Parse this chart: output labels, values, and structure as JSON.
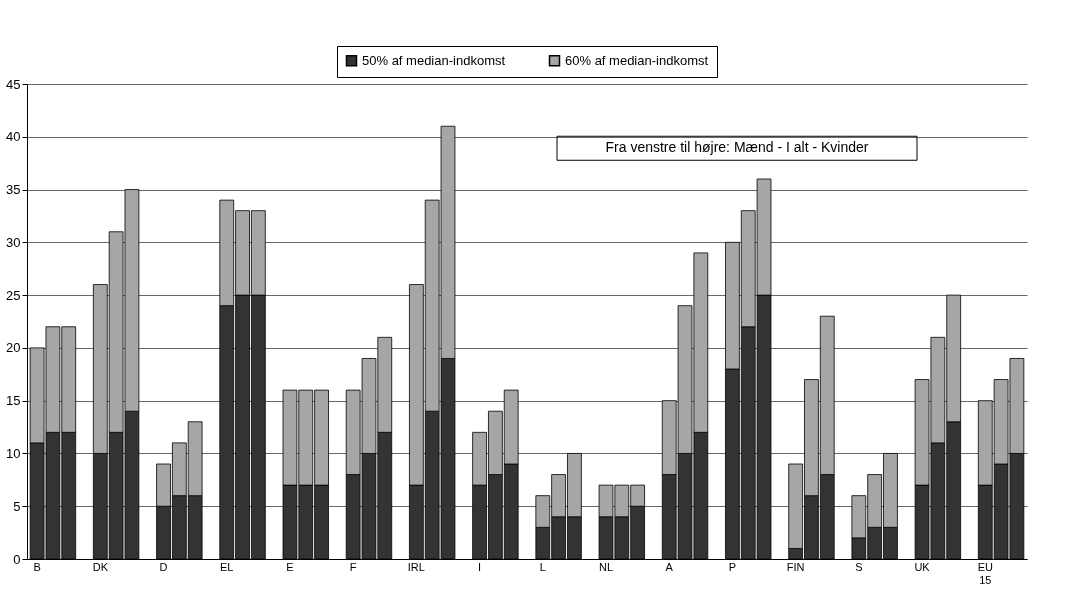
{
  "chart_data": {
    "type": "bar",
    "stacked": true,
    "categories": [
      "B",
      null,
      null,
      null,
      "DK",
      null,
      null,
      null,
      "D",
      null,
      null,
      null,
      "EL",
      null,
      null,
      null,
      "E",
      null,
      null,
      null,
      "F",
      null,
      null,
      null,
      "IRL",
      null,
      null,
      null,
      "I",
      null,
      null,
      null,
      "L",
      null,
      null,
      null,
      "NL",
      null,
      null,
      null,
      "A",
      null,
      null,
      null,
      "P",
      null,
      null,
      null,
      "FIN",
      null,
      null,
      null,
      "S",
      null,
      null,
      null,
      "UK",
      null,
      null,
      null,
      "EU 15",
      null,
      null
    ],
    "series": [
      {
        "name": "50% af median-indkomst",
        "color": "#333333",
        "values": [
          11,
          12,
          12,
          null,
          10,
          12,
          14,
          null,
          5,
          6,
          6,
          null,
          24,
          25,
          25,
          null,
          7,
          7,
          7,
          null,
          8,
          10,
          12,
          null,
          7,
          14,
          19,
          null,
          7,
          8,
          9,
          null,
          3,
          4,
          4,
          null,
          4,
          4,
          5,
          null,
          8,
          10,
          12,
          null,
          18,
          22,
          25,
          null,
          1,
          6,
          8,
          null,
          2,
          3,
          3,
          null,
          7,
          11,
          13,
          null,
          7,
          9,
          10
        ]
      },
      {
        "name": "60% af median-indkomst",
        "color": "#a6a6a6",
        "values": [
          9,
          10,
          10,
          null,
          16,
          19,
          21,
          null,
          4,
          5,
          7,
          null,
          10,
          8,
          8,
          null,
          9,
          9,
          9,
          null,
          8,
          9,
          9,
          null,
          19,
          20,
          22,
          null,
          5,
          6,
          7,
          null,
          3,
          4,
          6,
          null,
          3,
          3,
          2,
          null,
          7,
          14,
          17,
          null,
          12,
          11,
          11,
          null,
          8,
          11,
          15,
          null,
          4,
          5,
          7,
          null,
          10,
          10,
          12,
          null,
          8,
          8,
          9
        ]
      }
    ],
    "ylim": [
      0,
      45
    ],
    "yticks": [
      0,
      5,
      10,
      15,
      20,
      25,
      30,
      35,
      40,
      45
    ],
    "grid": "y",
    "legend": "top",
    "annotations": [
      "Fra venstre til højre: Mænd - I alt - Kvinder"
    ]
  }
}
